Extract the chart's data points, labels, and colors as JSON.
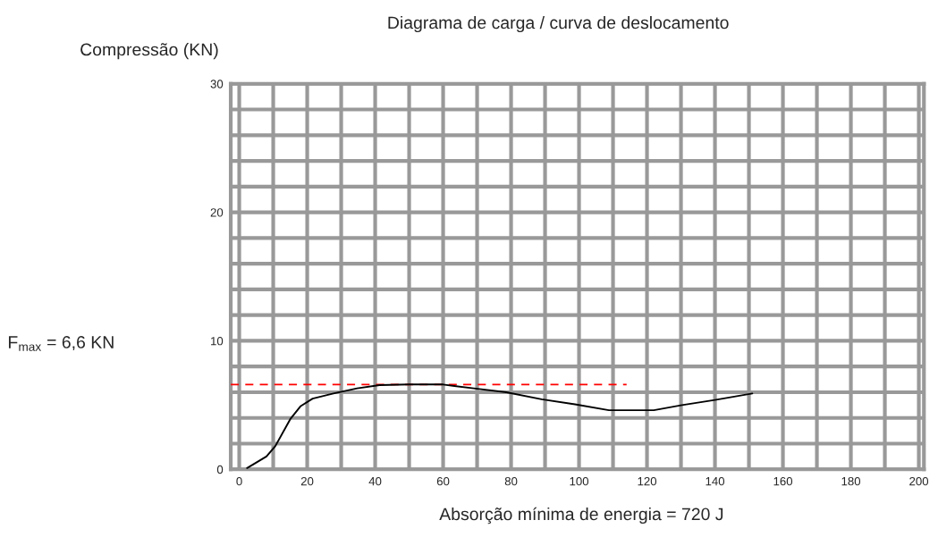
{
  "chart_data": {
    "type": "line",
    "title": "Diagrama de carga / curva de deslocamento",
    "ylabel": "Compressão (KN)",
    "xlabel": "Absorção mínima de energia = 720 J",
    "series": [
      {
        "color": "#000000",
        "line_style": "solid",
        "x": [
          2.3,
          8,
          10.6,
          15,
          18,
          21.6,
          27.7,
          34.7,
          41.3,
          50,
          60,
          69,
          78.6,
          89,
          98.8,
          108.8,
          122,
          130.3,
          140,
          151
        ],
        "values": [
          0.1,
          1.0,
          1.8,
          3.9,
          4.9,
          5.5,
          5.9,
          6.3,
          6.55,
          6.6,
          6.6,
          6.3,
          6.0,
          5.45,
          5.06,
          4.6,
          4.6,
          5.0,
          5.4,
          5.9
        ]
      },
      {
        "color": "#ff0000",
        "line_style": "dashed",
        "x": [
          -2.5,
          114
        ],
        "values": [
          6.6,
          6.6
        ]
      }
    ],
    "annotations": [
      "F$_{max}$ = 6,6 KN"
    ],
    "xlim": [
      -2.5,
      201.5
    ],
    "ylim": [
      0,
      30
    ],
    "xticks": [
      0,
      {
        "value": 10,
        "label": null
      },
      20,
      {
        "value": 30,
        "label": null
      },
      40,
      {
        "value": 50,
        "label": null
      },
      60,
      {
        "value": 70,
        "label": null
      },
      80,
      {
        "value": 90,
        "label": null
      },
      100,
      {
        "value": 110,
        "label": null
      },
      120,
      {
        "value": 130,
        "label": null
      },
      140,
      {
        "value": 150,
        "label": null
      },
      160,
      {
        "value": 170,
        "label": null
      },
      180,
      {
        "value": 190,
        "label": null
      },
      200
    ],
    "yticks": [
      0,
      {
        "value": 2,
        "label": null
      },
      {
        "value": 4,
        "label": null
      },
      {
        "value": 6,
        "label": null
      },
      {
        "value": 8,
        "label": null
      },
      10,
      {
        "value": 12,
        "label": null
      },
      {
        "value": 14,
        "label": null
      },
      {
        "value": 16,
        "label": null
      },
      {
        "value": 18,
        "label": null
      },
      20,
      {
        "value": 22,
        "label": null
      },
      {
        "value": 24,
        "label": null
      },
      {
        "value": 26,
        "label": null
      },
      {
        "value": 28,
        "label": null
      },
      30
    ],
    "grid": true,
    "marker": "none"
  }
}
